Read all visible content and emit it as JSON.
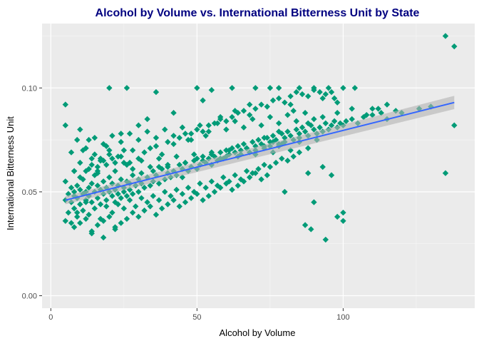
{
  "chart_data": {
    "type": "scatter",
    "title": "Alcohol by Volume vs. International Bitterness Unit by State",
    "xlabel": "Alcohol by Volume",
    "ylabel": "International Bitterness Unit",
    "xlim": [
      -3,
      145
    ],
    "ylim": [
      -0.006,
      0.131
    ],
    "x_ticks": [
      0,
      50,
      100
    ],
    "x_tick_labels": [
      "0",
      "50",
      "100"
    ],
    "y_ticks": [
      0.0,
      0.05,
      0.1
    ],
    "y_tick_labels": [
      "0.00",
      "0.05",
      "0.10"
    ],
    "x_minor_ticks": [
      25,
      75,
      125
    ],
    "y_minor_ticks": [
      0.025,
      0.075,
      0.125
    ],
    "grid": true,
    "legend": "none",
    "point_shape": "diamond",
    "series": [
      {
        "x": [
          5,
          5,
          6,
          7,
          7,
          8,
          8,
          8,
          9,
          9,
          10,
          10,
          11,
          11,
          12,
          12,
          13,
          13,
          14,
          14,
          15,
          15,
          16,
          16,
          17,
          17,
          18,
          18,
          19,
          19,
          20,
          20,
          21,
          21,
          22,
          22,
          23,
          23,
          24,
          24,
          25,
          25,
          26,
          26,
          27,
          27,
          28,
          28,
          29,
          30,
          30,
          31,
          31,
          32,
          33,
          34,
          35,
          35,
          36,
          37,
          38,
          39,
          40,
          40,
          41,
          42,
          43,
          44,
          45,
          45,
          46,
          47,
          48,
          49,
          50,
          50,
          51,
          52,
          53,
          54,
          55,
          55,
          56,
          57,
          58,
          59,
          60,
          60,
          61,
          62,
          63,
          64,
          65,
          65,
          66,
          67,
          68,
          69,
          70,
          70,
          71,
          72,
          73,
          74,
          75,
          75,
          76,
          77,
          78,
          79,
          80,
          80,
          81,
          82,
          83,
          84,
          85,
          85,
          86,
          87,
          88,
          89,
          90,
          91,
          92,
          93,
          94,
          95,
          96,
          97,
          98,
          99,
          100,
          101,
          103,
          105,
          107,
          110,
          113,
          115,
          118,
          120,
          126,
          130,
          135,
          138,
          5,
          7,
          10,
          12,
          14,
          16,
          18,
          20,
          22,
          24,
          26,
          28,
          30,
          32,
          34,
          36,
          38,
          40,
          42,
          44,
          46,
          48,
          50,
          52,
          54,
          56,
          58,
          60,
          62,
          64,
          66,
          68,
          70,
          72,
          74,
          76,
          78,
          80,
          82,
          84,
          86,
          88,
          90,
          92,
          94,
          96,
          98,
          100,
          6,
          9,
          11,
          13,
          15,
          17,
          19,
          21,
          23,
          25,
          27,
          29,
          31,
          33,
          35,
          37,
          39,
          41,
          43,
          45,
          47,
          49,
          51,
          53,
          55,
          57,
          59,
          61,
          63,
          65,
          67,
          69,
          71,
          73,
          75,
          77,
          79,
          81,
          83,
          85,
          87,
          89,
          5,
          8,
          10,
          12,
          14,
          16,
          18,
          20,
          22,
          24,
          26,
          28,
          30,
          32,
          34,
          36,
          38,
          40,
          42,
          44,
          46,
          48,
          50,
          52,
          54,
          56,
          58,
          60,
          62,
          64,
          66,
          68,
          70,
          72,
          74,
          76,
          78,
          9,
          12,
          15,
          18,
          21,
          24,
          27,
          30,
          33,
          36,
          39,
          42,
          45,
          48,
          51,
          54,
          57,
          60,
          63,
          66,
          69,
          72,
          75,
          78,
          81,
          84,
          87,
          90,
          93,
          96,
          8,
          10,
          13,
          16,
          19,
          22,
          25,
          28,
          31,
          34,
          37,
          40,
          43,
          46,
          49,
          52,
          55,
          58,
          61,
          64,
          67,
          70,
          73,
          76,
          79,
          82,
          85,
          88,
          91,
          94,
          97,
          20,
          26,
          36,
          50,
          52,
          55,
          62,
          70,
          75,
          78,
          85,
          90,
          93,
          95,
          98,
          100,
          104,
          110,
          115,
          112,
          82,
          88,
          5,
          135,
          138,
          80,
          90,
          100,
          18,
          22,
          14,
          7,
          9,
          12,
          16,
          17,
          11,
          13,
          15,
          19,
          21,
          23,
          25,
          8,
          10,
          14,
          17,
          20,
          24,
          27,
          30,
          33,
          37,
          42,
          47,
          53,
          58,
          63,
          68,
          73,
          78,
          83,
          88,
          93,
          98,
          103,
          108
        ],
        "y": [
          0.046,
          0.055,
          0.049,
          0.052,
          0.045,
          0.05,
          0.048,
          0.042,
          0.053,
          0.047,
          0.051,
          0.044,
          0.049,
          0.056,
          0.05,
          0.046,
          0.052,
          0.048,
          0.054,
          0.045,
          0.05,
          0.058,
          0.047,
          0.053,
          0.051,
          0.044,
          0.049,
          0.055,
          0.052,
          0.046,
          0.05,
          0.057,
          0.048,
          0.054,
          0.051,
          0.045,
          0.053,
          0.049,
          0.056,
          0.047,
          0.052,
          0.05,
          0.055,
          0.048,
          0.054,
          0.051,
          0.058,
          0.049,
          0.053,
          0.056,
          0.05,
          0.054,
          0.059,
          0.052,
          0.057,
          0.053,
          0.06,
          0.055,
          0.058,
          0.054,
          0.061,
          0.056,
          0.059,
          0.062,
          0.057,
          0.06,
          0.058,
          0.063,
          0.061,
          0.057,
          0.064,
          0.06,
          0.062,
          0.065,
          0.061,
          0.066,
          0.063,
          0.067,
          0.064,
          0.066,
          0.068,
          0.063,
          0.067,
          0.065,
          0.069,
          0.066,
          0.07,
          0.067,
          0.068,
          0.071,
          0.069,
          0.072,
          0.07,
          0.068,
          0.073,
          0.071,
          0.069,
          0.074,
          0.072,
          0.07,
          0.075,
          0.073,
          0.071,
          0.076,
          0.074,
          0.072,
          0.077,
          0.075,
          0.073,
          0.078,
          0.076,
          0.074,
          0.079,
          0.077,
          0.075,
          0.08,
          0.078,
          0.076,
          0.081,
          0.079,
          0.077,
          0.082,
          0.08,
          0.078,
          0.081,
          0.079,
          0.083,
          0.08,
          0.082,
          0.084,
          0.081,
          0.083,
          0.082,
          0.084,
          0.085,
          0.083,
          0.086,
          0.087,
          0.088,
          0.085,
          0.089,
          0.088,
          0.09,
          0.091,
          0.059,
          0.082,
          0.092,
          0.069,
          0.064,
          0.06,
          0.066,
          0.062,
          0.065,
          0.068,
          0.064,
          0.067,
          0.063,
          0.07,
          0.066,
          0.069,
          0.071,
          0.072,
          0.068,
          0.074,
          0.073,
          0.076,
          0.078,
          0.075,
          0.08,
          0.079,
          0.082,
          0.083,
          0.085,
          0.084,
          0.086,
          0.088,
          0.089,
          0.087,
          0.09,
          0.092,
          0.091,
          0.094,
          0.095,
          0.093,
          0.096,
          0.098,
          0.097,
          0.096,
          0.099,
          0.098,
          0.097,
          0.098,
          0.038,
          0.036,
          0.04,
          0.038,
          0.041,
          0.039,
          0.042,
          0.037,
          0.043,
          0.04,
          0.044,
          0.042,
          0.046,
          0.043,
          0.047,
          0.045,
          0.048,
          0.046,
          0.05,
          0.048,
          0.051,
          0.049,
          0.052,
          0.05,
          0.054,
          0.052,
          0.055,
          0.053,
          0.057,
          0.055,
          0.058,
          0.056,
          0.06,
          0.059,
          0.061,
          0.063,
          0.062,
          0.064,
          0.066,
          0.065,
          0.067,
          0.069,
          0.034,
          0.032,
          0.036,
          0.033,
          0.035,
          0.037,
          0.031,
          0.034,
          0.036,
          0.038,
          0.032,
          0.035,
          0.037,
          0.04,
          0.038,
          0.041,
          0.043,
          0.039,
          0.042,
          0.044,
          0.046,
          0.043,
          0.045,
          0.047,
          0.049,
          0.046,
          0.048,
          0.05,
          0.052,
          0.054,
          0.051,
          0.053,
          0.055,
          0.057,
          0.059,
          0.056,
          0.058,
          0.074,
          0.072,
          0.075,
          0.071,
          0.076,
          0.073,
          0.077,
          0.074,
          0.078,
          0.075,
          0.079,
          0.076,
          0.08,
          0.077,
          0.081,
          0.078,
          0.082,
          0.079,
          0.083,
          0.08,
          0.084,
          0.081,
          0.085,
          0.082,
          0.086,
          0.083,
          0.087,
          0.084,
          0.088,
          0.085,
          0.062,
          0.058,
          0.06,
          0.057,
          0.061,
          0.059,
          0.063,
          0.06,
          0.064,
          0.061,
          0.065,
          0.062,
          0.066,
          0.063,
          0.067,
          0.064,
          0.068,
          0.065,
          0.069,
          0.066,
          0.07,
          0.067,
          0.071,
          0.068,
          0.072,
          0.069,
          0.073,
          0.07,
          0.074,
          0.071,
          0.075,
          0.027,
          0.095,
          0.1,
          0.1,
          0.098,
          0.1,
          0.094,
          0.099,
          0.1,
          0.1,
          0.1,
          0.1,
          0.1,
          0.1,
          0.095,
          0.1,
          0.093,
          0.1,
          0.1,
          0.09,
          0.092,
          0.09,
          0.092,
          0.059,
          0.082,
          0.125,
          0.12,
          0.05,
          0.045,
          0.04,
          0.028,
          0.033,
          0.03,
          0.035,
          0.04,
          0.045,
          0.06,
          0.065,
          0.07,
          0.075,
          0.068,
          0.072,
          0.066,
          0.067,
          0.07,
          0.06,
          0.08,
          0.063,
          0.066,
          0.07,
          0.078,
          0.064,
          0.082,
          0.085,
          0.062,
          0.088,
          0.075,
          0.077,
          0.086,
          0.089,
          0.092,
          0.076,
          0.079,
          0.089,
          0.083,
          0.086,
          0.088,
          0.09,
          0.087
        ]
      }
    ],
    "trend_line": {
      "method": "lm",
      "x_range": [
        5,
        138
      ],
      "y_start": 0.046,
      "y_end": 0.093,
      "se_band": 0.002
    },
    "colors": {
      "point": "#009B77",
      "trend_line": "#3366FF",
      "se_band": "#B3B3B3",
      "panel_background": "#EBEBEB",
      "grid_major": "#FFFFFF",
      "title": "#000080"
    }
  }
}
